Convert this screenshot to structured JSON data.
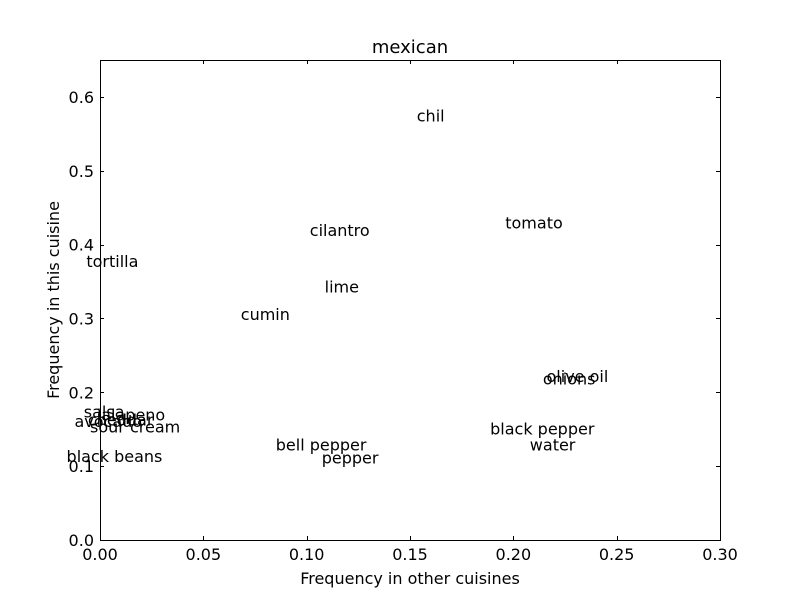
{
  "chart_data": {
    "type": "scatter",
    "title": "mexican",
    "xlabel": "Frequency in other cuisines",
    "ylabel": "Frequency in this cuisine",
    "xlim": [
      0.0,
      0.3
    ],
    "ylim": [
      0.0,
      0.65
    ],
    "xticks": [
      {
        "value": 0.0,
        "label": "0.00"
      },
      {
        "value": 0.05,
        "label": "0.05"
      },
      {
        "value": 0.1,
        "label": "0.10"
      },
      {
        "value": 0.15,
        "label": "0.15"
      },
      {
        "value": 0.2,
        "label": "0.20"
      },
      {
        "value": 0.25,
        "label": "0.25"
      },
      {
        "value": 0.3,
        "label": "0.30"
      }
    ],
    "yticks": [
      {
        "value": 0.0,
        "label": "0.0"
      },
      {
        "value": 0.1,
        "label": "0.1"
      },
      {
        "value": 0.2,
        "label": "0.2"
      },
      {
        "value": 0.3,
        "label": "0.3"
      },
      {
        "value": 0.4,
        "label": "0.4"
      },
      {
        "value": 0.5,
        "label": "0.5"
      },
      {
        "value": 0.6,
        "label": "0.6"
      }
    ],
    "grid": false,
    "points": [
      {
        "label": "chil",
        "x": 0.16,
        "y": 0.575
      },
      {
        "label": "tomato",
        "x": 0.21,
        "y": 0.43
      },
      {
        "label": "cilantro",
        "x": 0.116,
        "y": 0.42
      },
      {
        "label": "tortilla",
        "x": 0.006,
        "y": 0.378
      },
      {
        "label": "lime",
        "x": 0.117,
        "y": 0.343
      },
      {
        "label": "cumin",
        "x": 0.08,
        "y": 0.306
      },
      {
        "label": "olive oil",
        "x": 0.231,
        "y": 0.222
      },
      {
        "label": "onions",
        "x": 0.227,
        "y": 0.219
      },
      {
        "label": "salsa",
        "x": 0.002,
        "y": 0.174
      },
      {
        "label": "jalapeno",
        "x": 0.015,
        "y": 0.17
      },
      {
        "label": "avocado",
        "x": 0.004,
        "y": 0.161
      },
      {
        "label": "cheddar",
        "x": 0.01,
        "y": 0.163
      },
      {
        "label": "sour cream",
        "x": 0.017,
        "y": 0.154
      },
      {
        "label": "black pepper",
        "x": 0.214,
        "y": 0.151
      },
      {
        "label": "bell pepper",
        "x": 0.107,
        "y": 0.129
      },
      {
        "label": "water",
        "x": 0.219,
        "y": 0.129
      },
      {
        "label": "black beans",
        "x": 0.007,
        "y": 0.114
      },
      {
        "label": "pepper",
        "x": 0.121,
        "y": 0.112
      }
    ]
  }
}
